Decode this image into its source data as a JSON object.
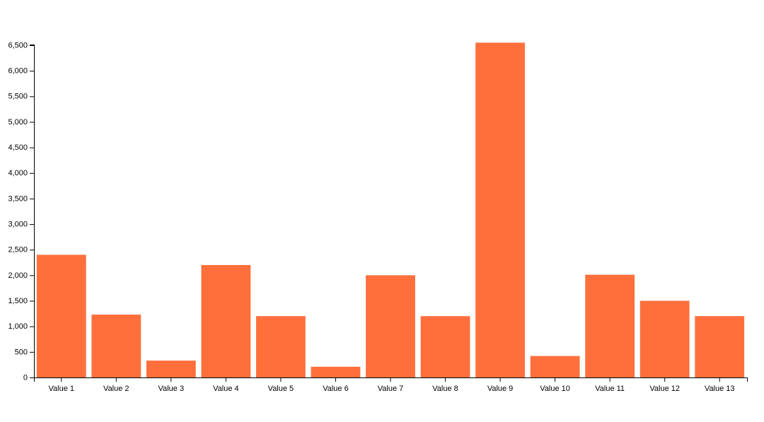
{
  "chart_data": {
    "type": "bar",
    "title": "",
    "xlabel": "",
    "ylabel": "",
    "categories": [
      "Value 1",
      "Value 2",
      "Value 3",
      "Value 4",
      "Value 5",
      "Value 6",
      "Value 7",
      "Value 8",
      "Value 9",
      "Value 10",
      "Value 11",
      "Value 12",
      "Value 13"
    ],
    "values": [
      2400,
      1230,
      330,
      2200,
      1200,
      210,
      2000,
      1200,
      6550,
      420,
      2010,
      1500,
      1200
    ],
    "ylim": [
      0,
      6500
    ],
    "yticks": [
      0,
      500,
      1000,
      1500,
      2000,
      2500,
      3000,
      3500,
      4000,
      4500,
      5000,
      5500,
      6000,
      6500
    ],
    "ytick_labels": [
      "0",
      "500",
      "1,000",
      "1,500",
      "2,000",
      "2,500",
      "3,000",
      "3,500",
      "4,000",
      "4,500",
      "5,000",
      "5,500",
      "6,000",
      "6,500"
    ],
    "grid": false,
    "legend": "none",
    "bar_color": "#ff6f3c",
    "axis_color": "#000000"
  }
}
